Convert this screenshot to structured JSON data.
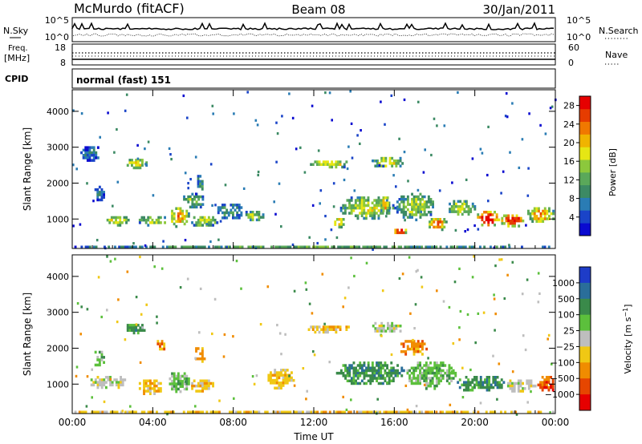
{
  "header": {
    "station": "McMurdo (fitACF)",
    "beam": "Beam 08",
    "date": "30/Jan/2011"
  },
  "aux_panels": {
    "nsky": {
      "label": "N.Sky",
      "tick_top": "10^5",
      "tick_bottom": "10^0"
    },
    "nsearch": {
      "label": "N.Search",
      "tick_top": "10^5",
      "tick_bottom": "10^0"
    },
    "freq": {
      "label_line1": "Freq.",
      "label_line2": "[MHz]",
      "tick_top": "18",
      "tick_bottom": "8"
    },
    "nave": {
      "label": "Nave",
      "tick_top": "60",
      "tick_bottom": "0"
    },
    "cpid": {
      "label": "CPID",
      "value": "normal (fast) 151"
    }
  },
  "chart_data": [
    {
      "type": "heatmap",
      "title": "",
      "xlabel": "",
      "ylabel": "Slant Range [km]",
      "x_ticks": [
        "00:00",
        "04:00",
        "08:00",
        "12:00",
        "16:00",
        "20:00",
        "00:00"
      ],
      "x_range_hours": [
        0,
        24
      ],
      "y_ticks": [
        1000,
        2000,
        3000,
        4000
      ],
      "ylim": [
        180,
        4600
      ],
      "colorbar": {
        "label": "Power [dB]",
        "ticks": [
          4,
          8,
          12,
          16,
          20,
          24,
          28
        ],
        "range": [
          0,
          30
        ],
        "colors": [
          "#0a0ad0",
          "#1a44c8",
          "#2a7cb4",
          "#3c8a64",
          "#5aa85a",
          "#8cc83c",
          "#e6e614",
          "#f0b400",
          "#f07800",
          "#e63c00",
          "#e60000"
        ]
      },
      "echo_regions": [
        {
          "t": [
            0.0,
            24.0
          ],
          "r": [
            200,
            330
          ],
          "level": 0.35
        },
        {
          "t": [
            0.3,
            1.4
          ],
          "r": [
            2650,
            3100
          ],
          "level": 0.2
        },
        {
          "t": [
            1.0,
            1.6
          ],
          "r": [
            1500,
            2000
          ],
          "level": 0.2
        },
        {
          "t": [
            1.6,
            2.8
          ],
          "r": [
            850,
            1150
          ],
          "level": 0.55
        },
        {
          "t": [
            2.6,
            3.7
          ],
          "r": [
            2450,
            2750
          ],
          "level": 0.6
        },
        {
          "t": [
            3.2,
            4.8
          ],
          "r": [
            850,
            1150
          ],
          "level": 0.5
        },
        {
          "t": [
            4.7,
            5.8
          ],
          "r": [
            800,
            1400
          ],
          "level": 0.65
        },
        {
          "t": [
            5.4,
            6.6
          ],
          "r": [
            1300,
            1800
          ],
          "level": 0.4
        },
        {
          "t": [
            5.8,
            7.2
          ],
          "r": [
            800,
            1150
          ],
          "level": 0.5
        },
        {
          "t": [
            6.1,
            6.5
          ],
          "r": [
            1800,
            2300
          ],
          "level": 0.3
        },
        {
          "t": [
            7.0,
            8.5
          ],
          "r": [
            1000,
            1500
          ],
          "level": 0.3
        },
        {
          "t": [
            8.5,
            9.5
          ],
          "r": [
            950,
            1300
          ],
          "level": 0.45
        },
        {
          "t": [
            11.6,
            13.8
          ],
          "r": [
            2450,
            2700
          ],
          "level": 0.55
        },
        {
          "t": [
            12.8,
            13.6
          ],
          "r": [
            800,
            1100
          ],
          "level": 0.6
        },
        {
          "t": [
            13.2,
            16.0
          ],
          "r": [
            1000,
            1700
          ],
          "level": 0.5
        },
        {
          "t": [
            14.8,
            16.5
          ],
          "r": [
            2450,
            2800
          ],
          "level": 0.55
        },
        {
          "t": [
            15.2,
            15.8
          ],
          "r": [
            1200,
            1700
          ],
          "level": 0.6
        },
        {
          "t": [
            15.9,
            16.6
          ],
          "r": [
            600,
            800
          ],
          "level": 0.9
        },
        {
          "t": [
            16.0,
            18.0
          ],
          "r": [
            1000,
            1800
          ],
          "level": 0.45
        },
        {
          "t": [
            17.6,
            18.6
          ],
          "r": [
            700,
            1100
          ],
          "level": 0.7
        },
        {
          "t": [
            18.6,
            20.0
          ],
          "r": [
            1100,
            1600
          ],
          "level": 0.5
        },
        {
          "t": [
            20.0,
            21.2
          ],
          "r": [
            800,
            1300
          ],
          "level": 0.9
        },
        {
          "t": [
            21.2,
            22.5
          ],
          "r": [
            800,
            1200
          ],
          "level": 0.85
        },
        {
          "t": [
            22.5,
            24.0
          ],
          "r": [
            900,
            1400
          ],
          "level": 0.65
        }
      ]
    },
    {
      "type": "heatmap",
      "title": "",
      "xlabel": "Time UT",
      "ylabel": "Slant Range [km]",
      "x_ticks": [
        "00:00",
        "04:00",
        "08:00",
        "12:00",
        "16:00",
        "20:00",
        "00:00"
      ],
      "x_range_hours": [
        0,
        24
      ],
      "y_ticks": [
        1000,
        2000,
        3000,
        4000
      ],
      "ylim": [
        180,
        4600
      ],
      "colorbar": {
        "label": "Velocity [m s^-1]",
        "ticks": [
          "1000",
          "500",
          "100",
          "25",
          "−25",
          "−100",
          "−500",
          "−1000"
        ],
        "colors": [
          "#1e3cc8",
          "#2a6e9a",
          "#3a8a4a",
          "#5cc03c",
          "#bebebe",
          "#f0c814",
          "#f08c00",
          "#e64600",
          "#e60000"
        ]
      },
      "echo_regions": [
        {
          "t": [
            0.0,
            24.0
          ],
          "r": [
            200,
            330
          ],
          "class": 5
        },
        {
          "t": [
            1.0,
            1.6
          ],
          "r": [
            1500,
            2000
          ],
          "class": 3
        },
        {
          "t": [
            0.8,
            2.6
          ],
          "r": [
            900,
            1300
          ],
          "class": 4
        },
        {
          "t": [
            2.6,
            3.6
          ],
          "r": [
            2450,
            2750
          ],
          "class": 2
        },
        {
          "t": [
            3.2,
            4.4
          ],
          "r": [
            700,
            1200
          ],
          "class": 5
        },
        {
          "t": [
            4.1,
            4.6
          ],
          "r": [
            1900,
            2300
          ],
          "class": 6
        },
        {
          "t": [
            4.7,
            5.8
          ],
          "r": [
            800,
            1400
          ],
          "class": 3
        },
        {
          "t": [
            5.8,
            7.0
          ],
          "r": [
            800,
            1200
          ],
          "class": 5
        },
        {
          "t": [
            6.0,
            6.6
          ],
          "r": [
            1600,
            2100
          ],
          "class": 6
        },
        {
          "t": [
            9.6,
            11.0
          ],
          "r": [
            900,
            1500
          ],
          "class": 5
        },
        {
          "t": [
            11.6,
            13.8
          ],
          "r": [
            2450,
            2700
          ],
          "class": 5
        },
        {
          "t": [
            13.0,
            16.5
          ],
          "r": [
            1000,
            1700
          ],
          "class": 2
        },
        {
          "t": [
            14.8,
            16.5
          ],
          "r": [
            2450,
            2800
          ],
          "class": 4
        },
        {
          "t": [
            16.2,
            17.6
          ],
          "r": [
            1800,
            2300
          ],
          "class": 6
        },
        {
          "t": [
            16.5,
            19.0
          ],
          "r": [
            900,
            1700
          ],
          "class": 3
        },
        {
          "t": [
            19.0,
            21.5
          ],
          "r": [
            800,
            1300
          ],
          "class": 2
        },
        {
          "t": [
            21.5,
            23.0
          ],
          "r": [
            800,
            1200
          ],
          "class": 4
        },
        {
          "t": [
            23.0,
            24.0
          ],
          "r": [
            800,
            1300
          ],
          "class": 7
        }
      ]
    }
  ]
}
